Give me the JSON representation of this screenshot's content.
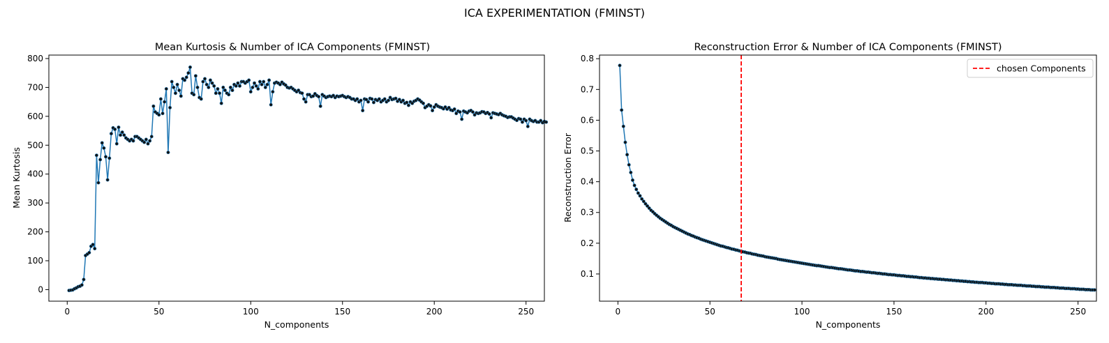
{
  "figure": {
    "suptitle": "ICA EXPERIMENTATION (FMINST)",
    "line_color": "#1f77b4",
    "marker_color": "#111111",
    "chosen_line_color": "#ff0000"
  },
  "chart_data": [
    {
      "type": "line",
      "title": "Mean Kurtosis & Number of ICA Components (FMINST)",
      "xlabel": "N_components",
      "ylabel": "Mean Kurtosis",
      "xlim": [
        -10,
        260
      ],
      "ylim": [
        -40,
        812
      ],
      "xticks": [
        0,
        50,
        100,
        150,
        200,
        250
      ],
      "yticks": [
        0,
        100,
        200,
        300,
        400,
        500,
        600,
        700,
        800
      ],
      "grid": false,
      "markers": true,
      "series": [
        {
          "x_start": 1,
          "values": [
            -3,
            -2,
            -1,
            3,
            6,
            10,
            12,
            16,
            35,
            118,
            123,
            128,
            150,
            156,
            142,
            465,
            370,
            450,
            508,
            490,
            460,
            380,
            455,
            540,
            560,
            555,
            505,
            562,
            535,
            545,
            535,
            525,
            520,
            515,
            520,
            515,
            530,
            530,
            525,
            520,
            515,
            510,
            520,
            505,
            515,
            530,
            635,
            615,
            610,
            605,
            660,
            610,
            650,
            695,
            475,
            630,
            720,
            700,
            680,
            710,
            690,
            670,
            730,
            725,
            735,
            750,
            770,
            680,
            675,
            740,
            700,
            665,
            660,
            720,
            730,
            710,
            700,
            725,
            715,
            705,
            680,
            695,
            680,
            645,
            700,
            690,
            680,
            675,
            700,
            690,
            710,
            705,
            715,
            705,
            720,
            720,
            715,
            720,
            725,
            685,
            700,
            715,
            705,
            695,
            720,
            710,
            720,
            700,
            710,
            725,
            640,
            685,
            715,
            718,
            715,
            710,
            718,
            712,
            708,
            700,
            698,
            700,
            695,
            690,
            685,
            690,
            682,
            680,
            660,
            650,
            675,
            675,
            668,
            670,
            678,
            672,
            668,
            635,
            675,
            670,
            665,
            668,
            670,
            668,
            672,
            665,
            670,
            668,
            670,
            672,
            668,
            665,
            668,
            665,
            660,
            660,
            655,
            660,
            650,
            655,
            620,
            660,
            658,
            650,
            662,
            660,
            648,
            658,
            655,
            660,
            650,
            655,
            660,
            650,
            655,
            665,
            658,
            660,
            662,
            652,
            658,
            650,
            655,
            645,
            648,
            638,
            650,
            645,
            652,
            655,
            660,
            656,
            650,
            645,
            630,
            635,
            640,
            636,
            620,
            632,
            640,
            635,
            632,
            630,
            626,
            632,
            625,
            630,
            622,
            620,
            625,
            610,
            618,
            615,
            590,
            618,
            615,
            612,
            618,
            620,
            615,
            605,
            612,
            610,
            612,
            616,
            615,
            610,
            613,
            608,
            595,
            612,
            610,
            608,
            606,
            610,
            605,
            602,
            600,
            596,
            598,
            598,
            594,
            590,
            586,
            592,
            590,
            580,
            590,
            585,
            565,
            590,
            585,
            582,
            585,
            580,
            580,
            585,
            578,
            582,
            580
          ]
        }
      ]
    },
    {
      "type": "line",
      "title": "Reconstruction Error & Number of ICA Components (FMINST)",
      "xlabel": "N_components",
      "ylabel": "Reconstruction Error",
      "xlim": [
        -10,
        260
      ],
      "ylim": [
        0.0115,
        0.8118
      ],
      "xticks": [
        0,
        50,
        100,
        150,
        200,
        250
      ],
      "yticks": [
        0.1,
        0.2,
        0.3,
        0.4,
        0.5,
        0.6,
        0.7,
        0.8
      ],
      "grid": false,
      "markers": true,
      "legend": {
        "placement": "top-right",
        "entries": [
          "chosen Components"
        ]
      },
      "chosen_x": 67,
      "series": [
        {
          "x_start": 1,
          "values": [
            0.778,
            0.633,
            0.58,
            0.528,
            0.488,
            0.455,
            0.43,
            0.405,
            0.388,
            0.375,
            0.363,
            0.354,
            0.344,
            0.336,
            0.328,
            0.321,
            0.314,
            0.307,
            0.302,
            0.296,
            0.291,
            0.286,
            0.281,
            0.277,
            0.273,
            0.269,
            0.265,
            0.261,
            0.258,
            0.254,
            0.251,
            0.248,
            0.245,
            0.242,
            0.239,
            0.236,
            0.233,
            0.23,
            0.228,
            0.225,
            0.223,
            0.22,
            0.218,
            0.216,
            0.213,
            0.211,
            0.209,
            0.207,
            0.205,
            0.203,
            0.201,
            0.199,
            0.197,
            0.195,
            0.193,
            0.191,
            0.19,
            0.188,
            0.186,
            0.185,
            0.183,
            0.181,
            0.18,
            0.178,
            0.177,
            0.175,
            0.174,
            0.172,
            0.171,
            0.169,
            0.168,
            0.167,
            0.165,
            0.164,
            0.163,
            0.161,
            0.16,
            0.159,
            0.158,
            0.156,
            0.155,
            0.154,
            0.153,
            0.152,
            0.151,
            0.15,
            0.148,
            0.147,
            0.146,
            0.145,
            0.144,
            0.143,
            0.142,
            0.141,
            0.14,
            0.139,
            0.138,
            0.137,
            0.136,
            0.135,
            0.134,
            0.133,
            0.132,
            0.131,
            0.13,
            0.129,
            0.128,
            0.127,
            0.127,
            0.126,
            0.125,
            0.124,
            0.123,
            0.122,
            0.121,
            0.121,
            0.12,
            0.119,
            0.118,
            0.117,
            0.117,
            0.116,
            0.115,
            0.114,
            0.113,
            0.113,
            0.112,
            0.111,
            0.11,
            0.11,
            0.109,
            0.108,
            0.108,
            0.107,
            0.106,
            0.106,
            0.105,
            0.104,
            0.104,
            0.103,
            0.102,
            0.102,
            0.101,
            0.1,
            0.1,
            0.099,
            0.098,
            0.098,
            0.097,
            0.097,
            0.096,
            0.095,
            0.095,
            0.094,
            0.094,
            0.093,
            0.092,
            0.092,
            0.091,
            0.091,
            0.09,
            0.09,
            0.089,
            0.088,
            0.088,
            0.087,
            0.087,
            0.086,
            0.086,
            0.085,
            0.085,
            0.084,
            0.084,
            0.083,
            0.083,
            0.082,
            0.082,
            0.081,
            0.081,
            0.08,
            0.08,
            0.079,
            0.079,
            0.078,
            0.078,
            0.077,
            0.077,
            0.076,
            0.076,
            0.075,
            0.075,
            0.074,
            0.074,
            0.073,
            0.073,
            0.072,
            0.072,
            0.072,
            0.071,
            0.071,
            0.07,
            0.07,
            0.069,
            0.069,
            0.068,
            0.068,
            0.068,
            0.067,
            0.067,
            0.066,
            0.066,
            0.065,
            0.065,
            0.065,
            0.064,
            0.064,
            0.063,
            0.063,
            0.063,
            0.062,
            0.062,
            0.061,
            0.061,
            0.061,
            0.06,
            0.06,
            0.059,
            0.059,
            0.059,
            0.058,
            0.058,
            0.057,
            0.057,
            0.057,
            0.056,
            0.056,
            0.056,
            0.055,
            0.055,
            0.054,
            0.054,
            0.054,
            0.053,
            0.053,
            0.053,
            0.052,
            0.052,
            0.052,
            0.051,
            0.051,
            0.05,
            0.05,
            0.05,
            0.049,
            0.049,
            0.049,
            0.048,
            0.048,
            0.048
          ]
        }
      ]
    }
  ]
}
